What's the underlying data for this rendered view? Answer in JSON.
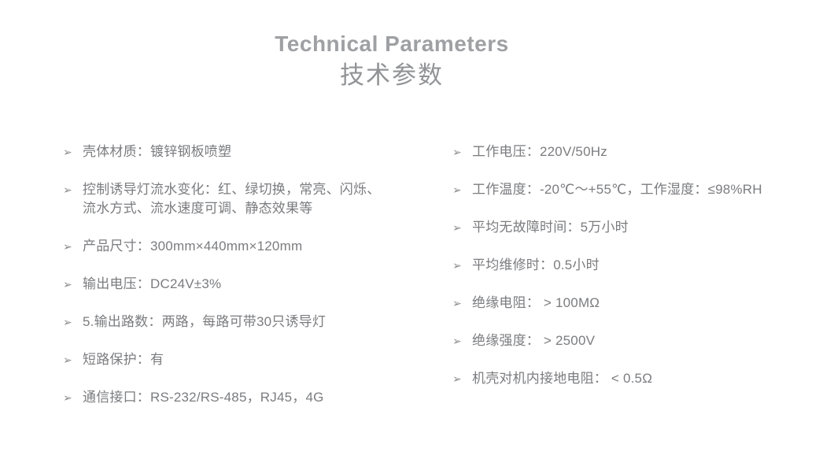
{
  "header": {
    "title_en": "Technical Parameters",
    "title_zh": "技术参数"
  },
  "bullet": {
    "icon": "➢"
  },
  "colors": {
    "background": "#ffffff",
    "title_en": "#9ea0a3",
    "title_zh": "#919396",
    "body_text": "#7b7c7f"
  },
  "specs": {
    "left": [
      {
        "text": "壳体材质：镀锌钢板喷塑"
      },
      {
        "text": "控制诱导灯流水变化：红、绿切换，常亮、闪烁、\n流水方式、流水速度可调、静态效果等"
      },
      {
        "text": "产品尺寸：300mm×440mm×120mm"
      },
      {
        "text": "输出电压：DC24V±3%"
      },
      {
        "text": "5.输出路数：两路，每路可带30只诱导灯"
      },
      {
        "text": "短路保护：有"
      },
      {
        "text": "通信接口：RS-232/RS-485，RJ45，4G"
      }
    ],
    "right": [
      {
        "text": "工作电压：220V/50Hz"
      },
      {
        "text": "工作温度：-20℃～+55℃，工作湿度：≤98%RH"
      },
      {
        "text": "平均无故障时间：5万小时"
      },
      {
        "text": "平均维修时：0.5小时"
      },
      {
        "text": "绝缘电阻： > 100MΩ"
      },
      {
        "text": "绝缘强度： > 2500V"
      },
      {
        "text": "机壳对机内接地电阻： < 0.5Ω"
      }
    ]
  }
}
